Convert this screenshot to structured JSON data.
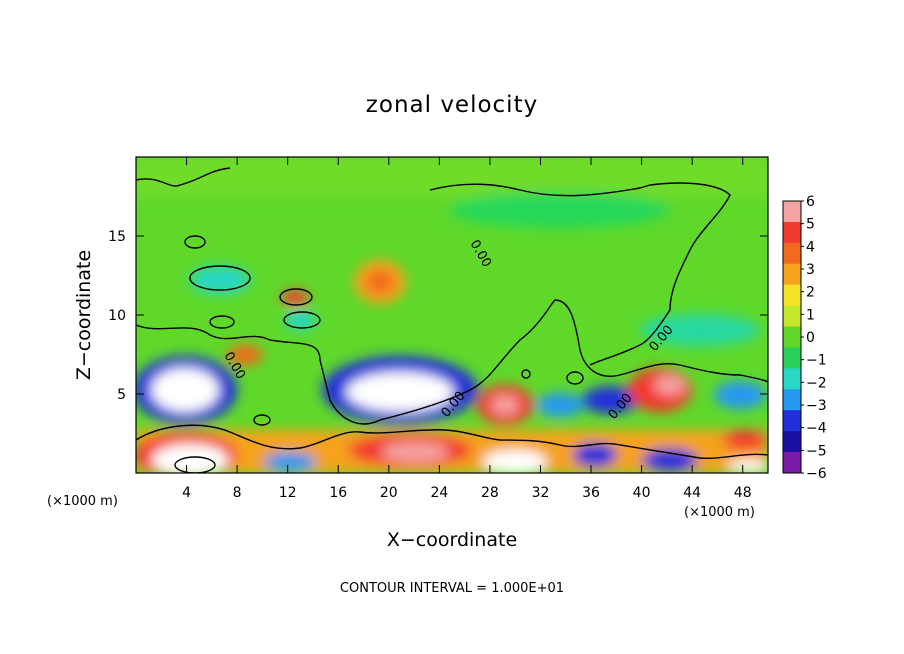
{
  "chart_data": {
    "type": "heatmap",
    "title": "zonal velocity",
    "xlabel": "X−coordinate",
    "ylabel": "Z−coordinate",
    "x_unit_left": "(×1000 m)",
    "x_unit_right": "(×1000 m)",
    "xlim": [
      0,
      50
    ],
    "ylim": [
      0,
      20
    ],
    "x_ticks": [
      4,
      8,
      12,
      16,
      20,
      24,
      28,
      32,
      36,
      40,
      44,
      48
    ],
    "y_ticks": [
      5,
      10,
      15
    ],
    "colorbar": {
      "ticks": [
        "6",
        "5",
        "4",
        "3",
        "2",
        "1",
        "0",
        "−1",
        "−2",
        "−3",
        "−4",
        "−5",
        "−6"
      ],
      "colors": [
        "#f4a3a3",
        "#f23a2e",
        "#f26a1f",
        "#f5a21c",
        "#f2e428",
        "#c6e82c",
        "#5fd82a",
        "#28d25a",
        "#28d8c4",
        "#2698f0",
        "#2030d8",
        "#1a0fa0",
        "#7a1aa8"
      ],
      "range": [
        -6,
        6
      ]
    },
    "contour_label": "0.00",
    "footer": "CONTOUR INTERVAL = 1.000E+01"
  }
}
